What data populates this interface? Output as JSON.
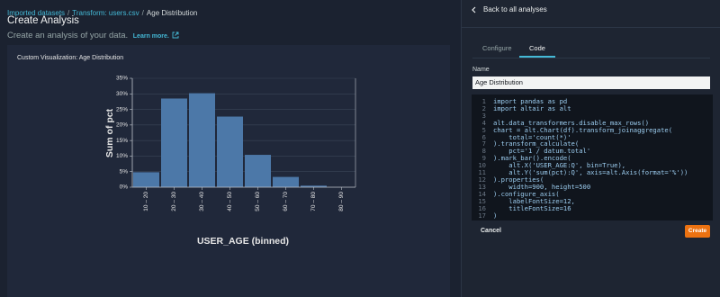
{
  "breadcrumb": {
    "items": [
      "Imported datasets",
      "Transform: users.csv",
      "Age Distribution"
    ],
    "separator": "/"
  },
  "header": {
    "title": "Create Analysis",
    "subtitle": "Create an analysis of your data.",
    "learn_more": "Learn more."
  },
  "panel": {
    "back": "Back to all analyses",
    "tabs": [
      "Configure",
      "Code"
    ],
    "name_label": "Name",
    "name_value": "Age Distribution",
    "code": [
      {
        "number": 1,
        "text": "import pandas as pd"
      },
      {
        "number": 2,
        "text": "import altair as alt"
      },
      {
        "number": 3
      },
      {
        "number": 4,
        "text": "alt.data_transformers.disable_max_rows()"
      },
      {
        "number": 5,
        "text": "chart = alt.Chart(df).transform_joinaggregate("
      },
      {
        "number": 6,
        "text": "    total='count(*)'"
      },
      {
        "number": 7,
        "text": ").transform_calculate("
      },
      {
        "number": 8,
        "text": "    pct='1 / datum.total'"
      },
      {
        "number": 9,
        "text": ").mark_bar().encode("
      },
      {
        "number": 10,
        "text": "    alt.X('USER_AGE:Q', bin=True),"
      },
      {
        "number": 11,
        "text": "    alt.Y('sum(pct):Q', axis=alt.Axis(format='%'))"
      },
      {
        "number": 12,
        "text": ").properties("
      },
      {
        "number": 13,
        "text": "    width=900, height=500"
      },
      {
        "number": 14,
        "text": ").configure_axis("
      },
      {
        "number": 15,
        "text": "    labelFontSize=12,"
      },
      {
        "number": 16,
        "text": "    titleFontSize=16"
      },
      {
        "number": 17,
        "text": ")"
      }
    ],
    "cancel": "Cancel",
    "create": "Create"
  },
  "chart_data": {
    "type": "bar",
    "title": "Custom Visualization: Age Distribution",
    "x_label": "USER_AGE (binned)",
    "y_label": "Sum of pct",
    "categories": [
      "10 – 20",
      "20 – 30",
      "30 – 40",
      "40 – 50",
      "50 – 60",
      "60 – 70",
      "70 – 80",
      "80 – 90"
    ],
    "values": [
      4.8,
      28.5,
      30.2,
      22.7,
      10.4,
      3.3,
      0.5,
      0
    ],
    "color": "#4c78a8",
    "ylim": [
      0,
      35
    ],
    "yticks": [
      {
        "value": 0,
        "label": "0%"
      },
      {
        "value": 5,
        "label": "5%"
      },
      {
        "value": 10,
        "label": "10%"
      },
      {
        "value": 15,
        "label": "15%"
      },
      {
        "value": 20,
        "label": "20%"
      },
      {
        "value": 25,
        "label": "25%"
      },
      {
        "value": 30,
        "label": "30%"
      },
      {
        "value": 35,
        "label": "35%"
      }
    ],
    "grid": true
  }
}
